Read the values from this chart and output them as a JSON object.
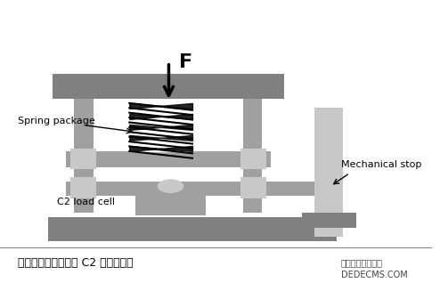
{
  "fig_width": 4.94,
  "fig_height": 3.27,
  "dpi": 100,
  "bg_color": "#ffffff",
  "gray_dark": "#808080",
  "gray_medium": "#a0a0a0",
  "gray_light": "#c8c8c8",
  "gray_base": "#909090",
  "title_text": "带有弹簧限位装置的 C2 称重传感器",
  "label_spring": "Spring package",
  "label_load": "C2 load cell",
  "label_stop": "Mechanical stop",
  "label_force": "F",
  "watermark1": "织梦内容管理系统",
  "watermark2": "DEDECMS.COM"
}
